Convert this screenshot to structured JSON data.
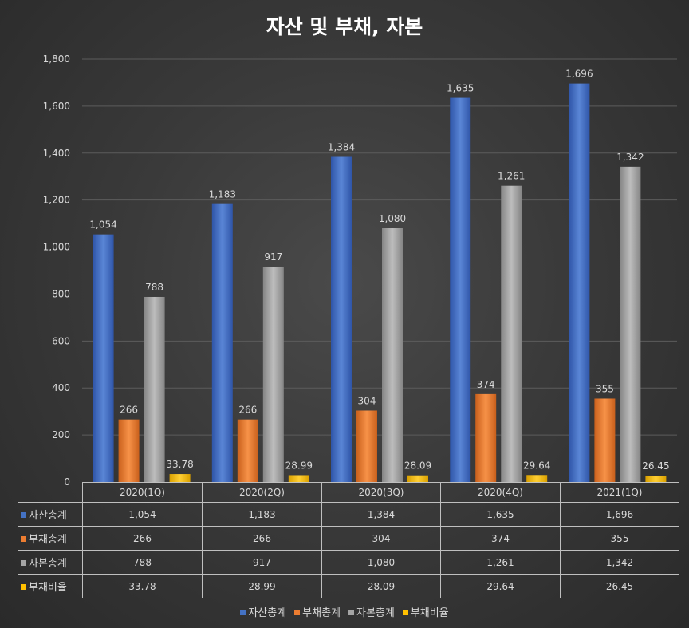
{
  "chart_data": {
    "type": "bar",
    "title": "자산 및 부채, 자본",
    "categories": [
      "2020(1Q)",
      "2020(2Q)",
      "2020(3Q)",
      "2020(4Q)",
      "2021(1Q)"
    ],
    "series": [
      {
        "name": "자산총계",
        "values": [
          1054,
          1183,
          1384,
          1635,
          1696
        ],
        "labels": [
          "1,054",
          "1,183",
          "1,384",
          "1,635",
          "1,696"
        ],
        "color": "#4472c4"
      },
      {
        "name": "부채총계",
        "values": [
          266,
          266,
          304,
          374,
          355
        ],
        "labels": [
          "266",
          "266",
          "304",
          "374",
          "355"
        ],
        "color": "#ed7d31"
      },
      {
        "name": "자본총계",
        "values": [
          788,
          917,
          1080,
          1261,
          1342
        ],
        "labels": [
          "788",
          "917",
          "1,080",
          "1,261",
          "1,342"
        ],
        "color": "#a5a5a5"
      },
      {
        "name": "부채비율",
        "values": [
          33.78,
          28.99,
          28.09,
          29.64,
          26.45
        ],
        "labels": [
          "33.78",
          "28.99",
          "28.09",
          "29.64",
          "26.45"
        ],
        "color": "#ffc000"
      }
    ],
    "ylim": [
      0,
      1800
    ],
    "yticks": [
      0,
      200,
      400,
      600,
      800,
      1000,
      1200,
      1400,
      1600,
      1800
    ],
    "ytick_labels": [
      "0",
      "200",
      "400",
      "600",
      "800",
      "1,000",
      "1,200",
      "1,400",
      "1,600",
      "1,800"
    ],
    "grid": true,
    "legend_position": "bottom",
    "data_table": true
  }
}
